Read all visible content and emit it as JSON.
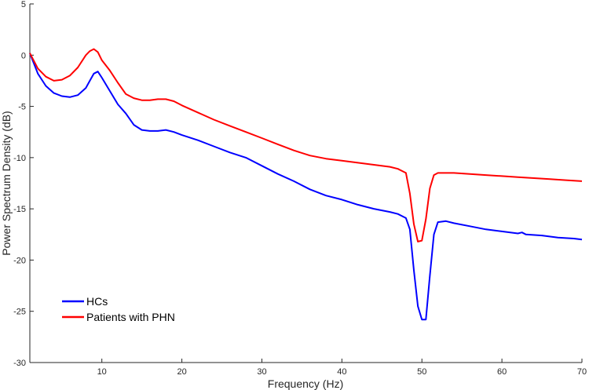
{
  "chart_data": {
    "type": "line",
    "title": "",
    "xlabel": "Frequency (Hz)",
    "ylabel": "Power Spectrum Density (dB)",
    "xlim": [
      1,
      70
    ],
    "ylim": [
      -30,
      5
    ],
    "xticks": [
      10,
      20,
      30,
      40,
      50,
      60,
      70
    ],
    "yticks": [
      5,
      0,
      -5,
      -10,
      -15,
      -20,
      -25,
      -30
    ],
    "grid": false,
    "legend_position": "bottom-left",
    "series": [
      {
        "name": "HCs",
        "color": "#0000ff",
        "x": [
          1,
          2,
          3,
          4,
          5,
          6,
          7,
          8,
          8.5,
          9,
          9.5,
          10,
          11,
          12,
          13,
          14,
          15,
          16,
          17,
          18,
          19,
          20,
          22,
          24,
          26,
          28,
          30,
          32,
          34,
          36,
          38,
          40,
          42,
          44,
          46,
          47,
          48,
          48.5,
          49,
          49.5,
          50,
          50.5,
          51,
          51.5,
          52,
          53,
          54,
          56,
          58,
          60,
          62,
          62.5,
          63,
          65,
          67,
          69,
          70
        ],
        "values": [
          0.2,
          -1.8,
          -3.0,
          -3.7,
          -4.0,
          -4.1,
          -3.9,
          -3.2,
          -2.5,
          -1.8,
          -1.6,
          -2.2,
          -3.5,
          -4.8,
          -5.7,
          -6.8,
          -7.3,
          -7.4,
          -7.4,
          -7.3,
          -7.5,
          -7.8,
          -8.3,
          -8.9,
          -9.5,
          -10.0,
          -10.8,
          -11.6,
          -12.3,
          -13.1,
          -13.7,
          -14.1,
          -14.6,
          -15.0,
          -15.3,
          -15.5,
          -15.9,
          -17.0,
          -21.0,
          -24.5,
          -25.8,
          -25.8,
          -21.5,
          -17.5,
          -16.3,
          -16.2,
          -16.4,
          -16.7,
          -17.0,
          -17.2,
          -17.4,
          -17.3,
          -17.5,
          -17.6,
          -17.8,
          -17.9,
          -18.0
        ]
      },
      {
        "name": "Patients with PHN",
        "color": "#ff0000",
        "x": [
          1,
          2,
          3,
          4,
          5,
          6,
          7,
          8,
          8.5,
          9,
          9.5,
          10,
          11,
          12,
          13,
          14,
          15,
          16,
          17,
          18,
          19,
          20,
          22,
          24,
          26,
          28,
          30,
          32,
          34,
          36,
          38,
          40,
          42,
          44,
          46,
          47,
          48,
          48.5,
          49,
          49.5,
          50,
          50.5,
          51,
          51.5,
          52,
          53,
          54,
          56,
          58,
          60,
          62,
          64,
          66,
          68,
          70
        ],
        "values": [
          0.2,
          -1.3,
          -2.1,
          -2.5,
          -2.4,
          -2.0,
          -1.2,
          0.0,
          0.4,
          0.6,
          0.3,
          -0.5,
          -1.5,
          -2.7,
          -3.8,
          -4.2,
          -4.4,
          -4.4,
          -4.3,
          -4.3,
          -4.5,
          -4.9,
          -5.6,
          -6.3,
          -6.9,
          -7.5,
          -8.1,
          -8.7,
          -9.3,
          -9.8,
          -10.1,
          -10.3,
          -10.5,
          -10.7,
          -10.9,
          -11.1,
          -11.5,
          -13.5,
          -16.5,
          -18.2,
          -18.1,
          -16.0,
          -13.0,
          -11.7,
          -11.5,
          -11.5,
          -11.5,
          -11.6,
          -11.7,
          -11.8,
          -11.9,
          -12.0,
          -12.1,
          -12.2,
          -12.3
        ]
      }
    ]
  }
}
